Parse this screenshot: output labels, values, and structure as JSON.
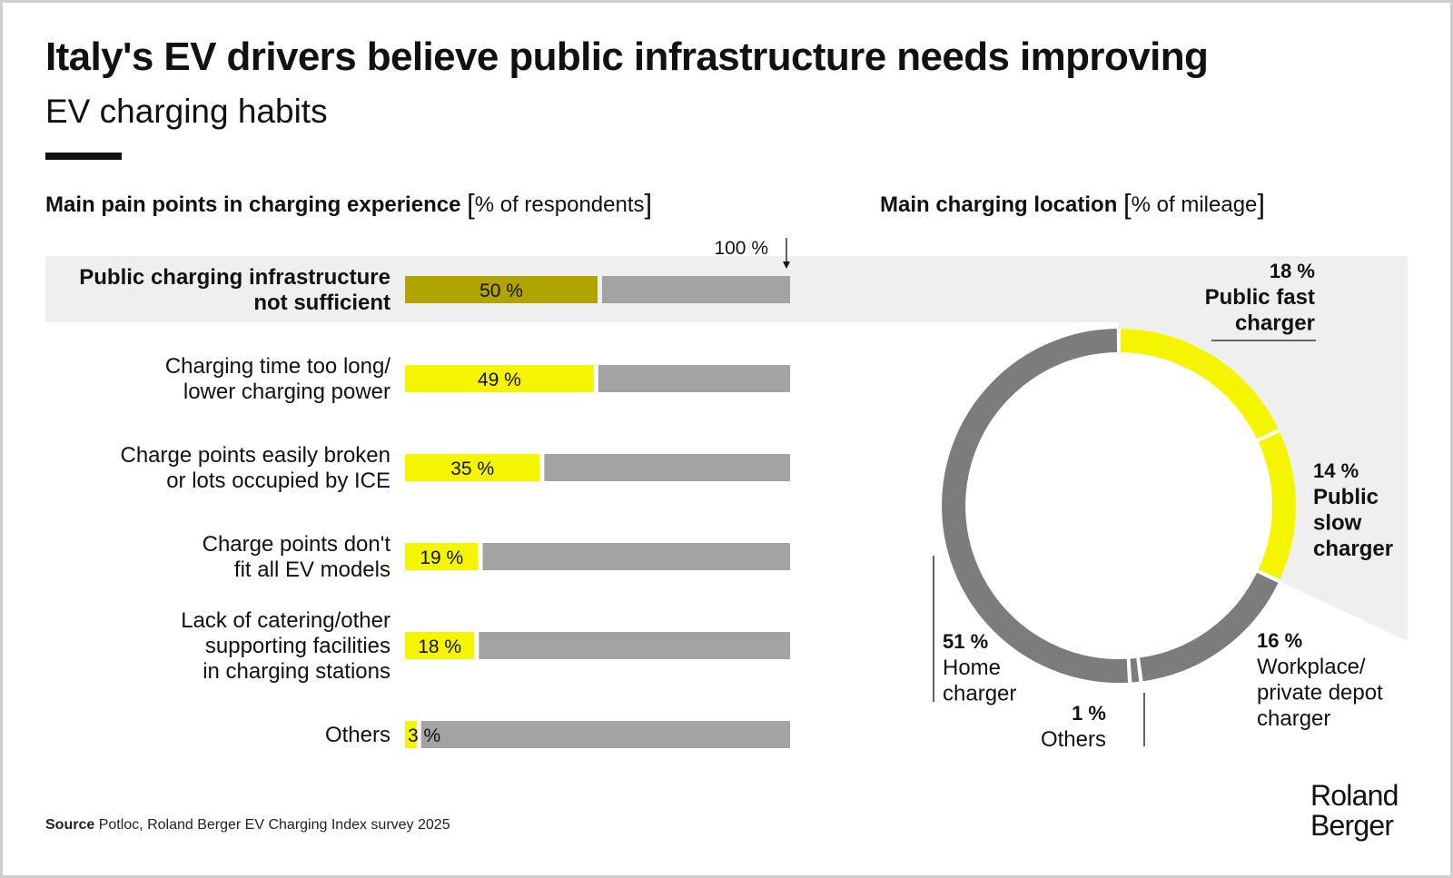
{
  "title": "Italy's EV drivers believe public infrastructure needs improving",
  "subtitle": "EV charging habits",
  "source": {
    "label": "Source",
    "text": "Potloc, Roland Berger EV Charging Index survey 2025"
  },
  "logo": {
    "line1": "Roland",
    "line2": "Berger"
  },
  "colors": {
    "accent": "#f5f500",
    "highlight_bar": "#b1a300",
    "remainder": "#a3a3a3",
    "donut_gray": "#7c7c7c",
    "highlight_band": "#efefef"
  },
  "chart_data": [
    {
      "type": "bar",
      "orientation": "horizontal",
      "title": "Main pain points in charging experience",
      "unit": "% of respondents",
      "reference_label": "100 %",
      "xlim": [
        0,
        100
      ],
      "categories": [
        [
          "Public charging infrastructure",
          "not sufficient"
        ],
        [
          "Charging time too long/",
          "lower charging power"
        ],
        [
          "Charge points easily broken",
          "or lots occupied by ICE"
        ],
        [
          "Charge points don't",
          "fit all EV models"
        ],
        [
          "Lack of catering/other",
          "supporting facilities",
          "in charging stations"
        ],
        [
          "Others"
        ]
      ],
      "values": [
        50,
        49,
        35,
        19,
        18,
        3
      ],
      "value_labels": [
        "50 %",
        "49 %",
        "35 %",
        "19 %",
        "18 %",
        "3 %"
      ],
      "highlighted_index": 0
    },
    {
      "type": "pie",
      "style": "donut",
      "title": "Main charging location",
      "unit": "% of mileage",
      "slices": [
        {
          "lines": [
            "Public fast",
            "charger"
          ],
          "value": 18,
          "value_label": "18 %",
          "color": "#f5f500",
          "highlighted": true
        },
        {
          "lines": [
            "Public",
            "slow",
            "charger"
          ],
          "value": 14,
          "value_label": "14 %",
          "color": "#f5f500",
          "highlighted": true
        },
        {
          "lines": [
            "Workplace/",
            "private depot",
            "charger"
          ],
          "value": 16,
          "value_label": "16 %",
          "color": "#7c7c7c",
          "highlighted": false
        },
        {
          "lines": [
            "Others"
          ],
          "value": 1,
          "value_label": "1 %",
          "color": "#7c7c7c",
          "highlighted": false
        },
        {
          "lines": [
            "Home",
            "charger"
          ],
          "value": 51,
          "value_label": "51 %",
          "color": "#7c7c7c",
          "highlighted": false
        }
      ]
    }
  ]
}
